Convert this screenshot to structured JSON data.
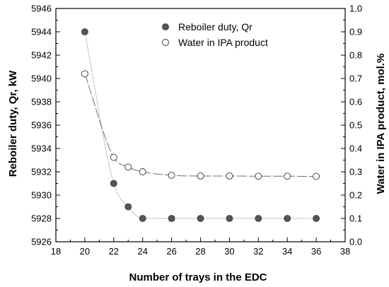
{
  "chart_data": {
    "type": "scatter",
    "xlabel": "Number of trays in the EDC",
    "ylabel_left": "Reboiler duty, Qr, kW",
    "ylabel_right": "Water in IPA product, mol.%",
    "xlim": [
      18,
      38
    ],
    "xticks": [
      "18",
      "20",
      "22",
      "24",
      "26",
      "28",
      "30",
      "32",
      "34",
      "36",
      "38"
    ],
    "ylim_left": [
      5926,
      5946
    ],
    "yticks_left": [
      "5926",
      "5928",
      "5930",
      "5932",
      "5934",
      "5936",
      "5938",
      "5940",
      "5942",
      "5944",
      "5946"
    ],
    "ylim_right": [
      0.0,
      1.0
    ],
    "yticks_right": [
      "0.0",
      "0.1",
      "0.2",
      "0.3",
      "0.4",
      "0.5",
      "0.6",
      "0.7",
      "0.8",
      "0.9",
      "1.0"
    ],
    "legend_position": "top-right",
    "grid": false,
    "series": [
      {
        "name": "Reboiler duty, Qr",
        "axis": "left",
        "marker": "filled-circle",
        "color": "#555555",
        "x": [
          20,
          22,
          23,
          24,
          26,
          28,
          30,
          32,
          34,
          36
        ],
        "y": [
          5944,
          5931,
          5929,
          5928,
          5928,
          5928,
          5928,
          5928,
          5928,
          5928
        ]
      },
      {
        "name": "Water in IPA product",
        "axis": "right",
        "marker": "open-circle",
        "color": "#555555",
        "x": [
          20,
          22,
          23,
          24,
          26,
          28,
          30,
          32,
          34,
          36
        ],
        "y": [
          0.72,
          0.362,
          0.32,
          0.3,
          0.285,
          0.282,
          0.282,
          0.281,
          0.281,
          0.28
        ]
      }
    ]
  }
}
